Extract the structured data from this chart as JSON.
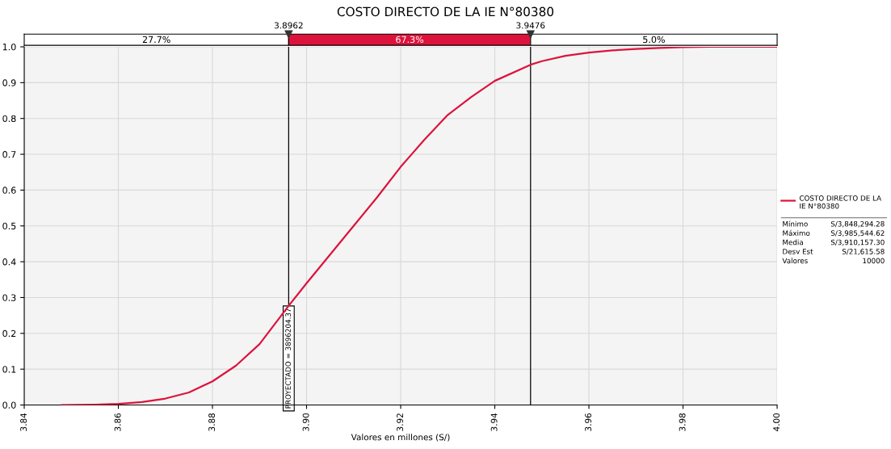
{
  "chart_data": {
    "type": "line",
    "title": "COSTO DIRECTO DE LA IE N°80380",
    "xlabel": "Valores en millones (S/)",
    "x": [
      3.848,
      3.855,
      3.86,
      3.865,
      3.87,
      3.875,
      3.88,
      3.885,
      3.89,
      3.8962,
      3.9,
      3.905,
      3.91,
      3.915,
      3.92,
      3.925,
      3.93,
      3.935,
      3.94,
      3.9476,
      3.95,
      3.955,
      3.96,
      3.965,
      3.97,
      3.975,
      3.98,
      3.9855,
      4.0
    ],
    "series": [
      {
        "name": "COSTO DIRECTO DE LA IE N°80380",
        "color": "#dc143c",
        "values": [
          0.0,
          0.001,
          0.003,
          0.008,
          0.018,
          0.035,
          0.066,
          0.11,
          0.17,
          0.277,
          0.34,
          0.42,
          0.5,
          0.58,
          0.665,
          0.74,
          0.81,
          0.86,
          0.905,
          0.95,
          0.96,
          0.975,
          0.984,
          0.99,
          0.994,
          0.997,
          0.999,
          1.0,
          1.0
        ]
      }
    ],
    "xlim": [
      3.84,
      4.0
    ],
    "xticks": [
      {
        "value": 3.84,
        "label": "3.84"
      },
      {
        "value": 3.86,
        "label": "3.86"
      },
      {
        "value": 3.88,
        "label": "3.88"
      },
      {
        "value": 3.9,
        "label": "3.90"
      },
      {
        "value": 3.92,
        "label": "3.92"
      },
      {
        "value": 3.94,
        "label": "3.94"
      },
      {
        "value": 3.96,
        "label": "3.96"
      },
      {
        "value": 3.98,
        "label": "3.98"
      },
      {
        "value": 4.0,
        "label": "4.00"
      }
    ],
    "ylim": [
      0,
      1.0
    ],
    "yticks": [
      {
        "value": 0,
        "label": "0.0"
      },
      0.1,
      0.2,
      0.3,
      0.4,
      0.5,
      0.6,
      0.7,
      0.8,
      0.9,
      {
        "value": 1.0,
        "label": "1.0"
      }
    ],
    "ref_lines": [
      {
        "axis": "x",
        "value": 3.8962,
        "label": "3.8962",
        "color": "#000000"
      },
      {
        "axis": "x",
        "value": 3.9476,
        "label": "3.9476",
        "color": "#000000"
      }
    ],
    "annotations": [
      {
        "text": "PROYECTADO = 3896204.37",
        "x": 3.8962,
        "y": 0.13
      },
      "27.7%",
      "67.3%",
      "5.0%",
      "Mínimo",
      "S/3,848,294.28",
      "Máximo",
      "S/3,985,544.62",
      "Media",
      "S/3,910,157.30",
      "Desv Est",
      "S/21,615.58",
      "Valores",
      "10000"
    ],
    "grid": true,
    "legend": "right",
    "line_style": "solid",
    "marker": "none"
  }
}
